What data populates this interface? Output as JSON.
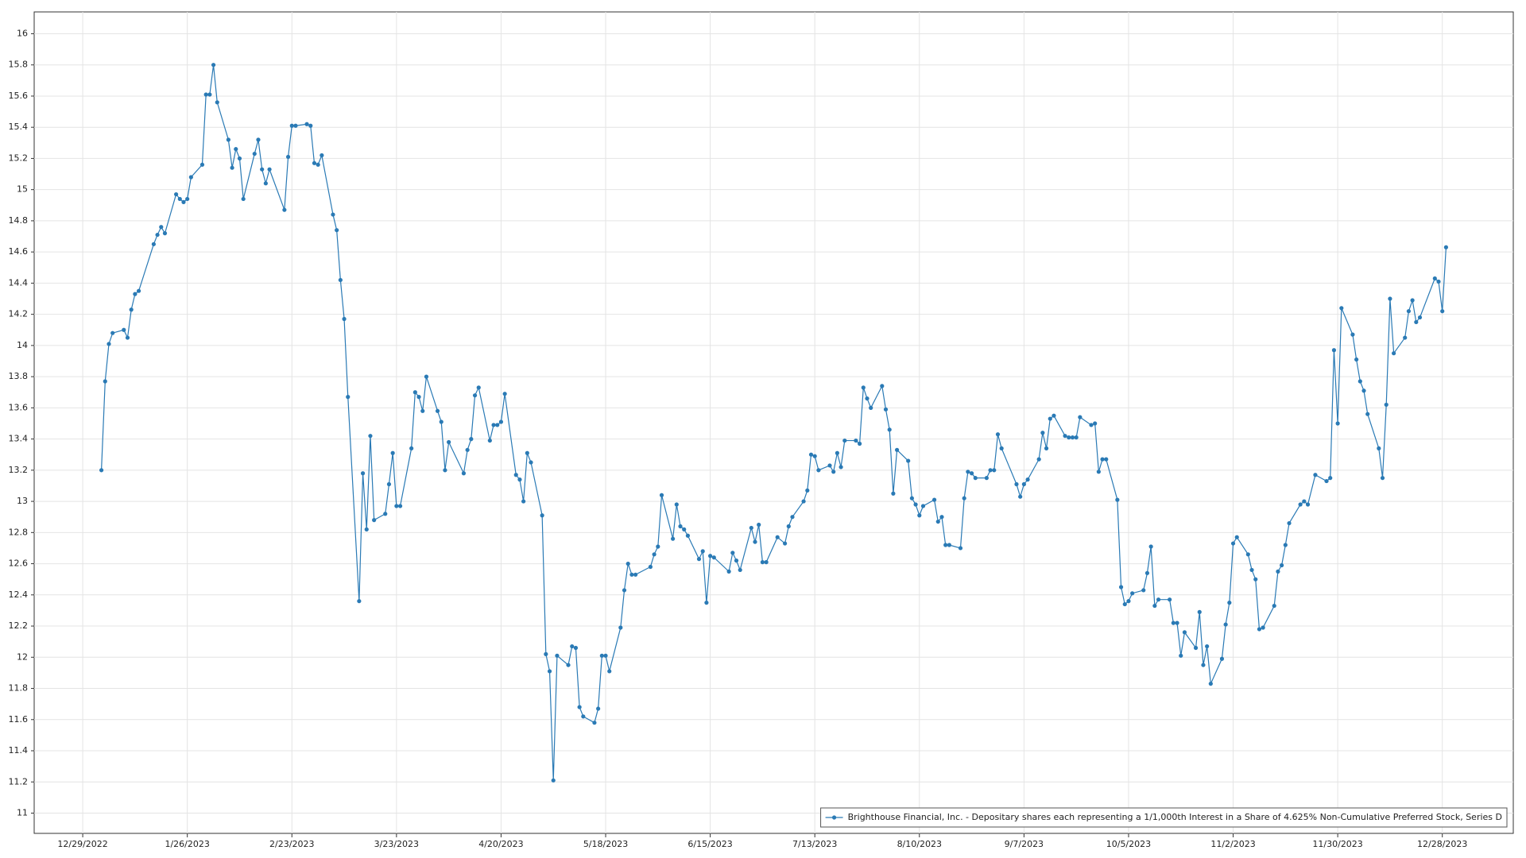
{
  "chart_data": {
    "type": "line",
    "x": [
      "1/3/2023",
      "1/4/2023",
      "1/5/2023",
      "1/6/2023",
      "1/9/2023",
      "1/10/2023",
      "1/11/2023",
      "1/12/2023",
      "1/13/2023",
      "1/17/2023",
      "1/18/2023",
      "1/19/2023",
      "1/20/2023",
      "1/23/2023",
      "1/24/2023",
      "1/25/2023",
      "1/26/2023",
      "1/27/2023",
      "1/30/2023",
      "1/31/2023",
      "2/1/2023",
      "2/2/2023",
      "2/3/2023",
      "2/6/2023",
      "2/7/2023",
      "2/8/2023",
      "2/9/2023",
      "2/10/2023",
      "2/13/2023",
      "2/14/2023",
      "2/15/2023",
      "2/16/2023",
      "2/17/2023",
      "2/21/2023",
      "2/22/2023",
      "2/23/2023",
      "2/24/2023",
      "2/27/2023",
      "2/28/2023",
      "3/1/2023",
      "3/2/2023",
      "3/3/2023",
      "3/6/2023",
      "3/7/2023",
      "3/8/2023",
      "3/9/2023",
      "3/10/2023",
      "3/13/2023",
      "3/14/2023",
      "3/15/2023",
      "3/16/2023",
      "3/17/2023",
      "3/20/2023",
      "3/21/2023",
      "3/22/2023",
      "3/23/2023",
      "3/24/2023",
      "3/27/2023",
      "3/28/2023",
      "3/29/2023",
      "3/30/2023",
      "3/31/2023",
      "4/3/2023",
      "4/4/2023",
      "4/5/2023",
      "4/6/2023",
      "4/10/2023",
      "4/11/2023",
      "4/12/2023",
      "4/13/2023",
      "4/14/2023",
      "4/17/2023",
      "4/18/2023",
      "4/19/2023",
      "4/20/2023",
      "4/21/2023",
      "4/24/2023",
      "4/25/2023",
      "4/26/2023",
      "4/27/2023",
      "4/28/2023",
      "5/1/2023",
      "5/2/2023",
      "5/3/2023",
      "5/4/2023",
      "5/5/2023",
      "5/8/2023",
      "5/9/2023",
      "5/10/2023",
      "5/11/2023",
      "5/12/2023",
      "5/15/2023",
      "5/16/2023",
      "5/17/2023",
      "5/18/2023",
      "5/19/2023",
      "5/22/2023",
      "5/23/2023",
      "5/24/2023",
      "5/25/2023",
      "5/26/2023",
      "5/30/2023",
      "5/31/2023",
      "6/1/2023",
      "6/2/2023",
      "6/5/2023",
      "6/6/2023",
      "6/7/2023",
      "6/8/2023",
      "6/9/2023",
      "6/12/2023",
      "6/13/2023",
      "6/14/2023",
      "6/15/2023",
      "6/16/2023",
      "6/20/2023",
      "6/21/2023",
      "6/22/2023",
      "6/23/2023",
      "6/26/2023",
      "6/27/2023",
      "6/28/2023",
      "6/29/2023",
      "6/30/2023",
      "7/3/2023",
      "7/5/2023",
      "7/6/2023",
      "7/7/2023",
      "7/10/2023",
      "7/11/2023",
      "7/12/2023",
      "7/13/2023",
      "7/14/2023",
      "7/17/2023",
      "7/18/2023",
      "7/19/2023",
      "7/20/2023",
      "7/21/2023",
      "7/24/2023",
      "7/25/2023",
      "7/26/2023",
      "7/27/2023",
      "7/28/2023",
      "7/31/2023",
      "8/1/2023",
      "8/2/2023",
      "8/3/2023",
      "8/4/2023",
      "8/7/2023",
      "8/8/2023",
      "8/9/2023",
      "8/10/2023",
      "8/11/2023",
      "8/14/2023",
      "8/15/2023",
      "8/16/2023",
      "8/17/2023",
      "8/18/2023",
      "8/21/2023",
      "8/22/2023",
      "8/23/2023",
      "8/24/2023",
      "8/25/2023",
      "8/28/2023",
      "8/29/2023",
      "8/30/2023",
      "8/31/2023",
      "9/1/2023",
      "9/5/2023",
      "9/6/2023",
      "9/7/2023",
      "9/8/2023",
      "9/11/2023",
      "9/12/2023",
      "9/13/2023",
      "9/14/2023",
      "9/15/2023",
      "9/18/2023",
      "9/19/2023",
      "9/20/2023",
      "9/21/2023",
      "9/22/2023",
      "9/25/2023",
      "9/26/2023",
      "9/27/2023",
      "9/28/2023",
      "9/29/2023",
      "10/2/2023",
      "10/3/2023",
      "10/4/2023",
      "10/5/2023",
      "10/6/2023",
      "10/9/2023",
      "10/10/2023",
      "10/11/2023",
      "10/12/2023",
      "10/13/2023",
      "10/16/2023",
      "10/17/2023",
      "10/18/2023",
      "10/19/2023",
      "10/20/2023",
      "10/23/2023",
      "10/24/2023",
      "10/25/2023",
      "10/26/2023",
      "10/27/2023",
      "10/30/2023",
      "10/31/2023",
      "11/1/2023",
      "11/2/2023",
      "11/3/2023",
      "11/6/2023",
      "11/7/2023",
      "11/8/2023",
      "11/9/2023",
      "11/10/2023",
      "11/13/2023",
      "11/14/2023",
      "11/15/2023",
      "11/16/2023",
      "11/17/2023",
      "11/20/2023",
      "11/21/2023",
      "11/22/2023",
      "11/24/2023",
      "11/27/2023",
      "11/28/2023",
      "11/29/2023",
      "11/30/2023",
      "12/1/2023",
      "12/4/2023",
      "12/5/2023",
      "12/6/2023",
      "12/7/2023",
      "12/8/2023",
      "12/11/2023",
      "12/12/2023",
      "12/13/2023",
      "12/14/2023",
      "12/15/2023",
      "12/18/2023",
      "12/19/2023",
      "12/20/2023",
      "12/21/2023",
      "12/22/2023",
      "12/26/2023",
      "12/27/2023",
      "12/28/2023",
      "12/29/2023"
    ],
    "series": [
      {
        "name": "Brighthouse Financial, Inc. - Depositary shares each representing a 1/1,000th Interest in a Share of 4.625% Non-Cumulative Preferred Stock, Series D",
        "color": "#2a7ab5",
        "values": [
          13.2,
          13.77,
          14.01,
          14.08,
          14.1,
          14.05,
          14.23,
          14.33,
          14.35,
          14.65,
          14.71,
          14.76,
          14.72,
          14.97,
          14.94,
          14.92,
          14.94,
          15.08,
          15.16,
          15.61,
          15.61,
          15.8,
          15.56,
          15.32,
          15.14,
          15.26,
          15.2,
          14.94,
          15.23,
          15.32,
          15.13,
          15.04,
          15.13,
          14.87,
          15.21,
          15.41,
          15.41,
          15.42,
          15.41,
          15.17,
          15.16,
          15.22,
          14.84,
          14.74,
          14.42,
          14.17,
          13.67,
          12.36,
          13.18,
          12.82,
          13.42,
          12.88,
          12.92,
          13.11,
          13.31,
          12.97,
          12.97,
          13.34,
          13.7,
          13.67,
          13.58,
          13.8,
          13.58,
          13.51,
          13.2,
          13.38,
          13.18,
          13.33,
          13.4,
          13.68,
          13.73,
          13.39,
          13.49,
          13.49,
          13.51,
          13.69,
          13.17,
          13.14,
          13.0,
          13.31,
          13.25,
          12.91,
          12.02,
          11.91,
          11.21,
          12.01,
          11.95,
          12.07,
          12.06,
          11.68,
          11.62,
          11.58,
          11.67,
          12.01,
          12.01,
          11.91,
          12.19,
          12.43,
          12.6,
          12.53,
          12.53,
          12.58,
          12.66,
          12.71,
          13.04,
          12.76,
          12.98,
          12.84,
          12.82,
          12.78,
          12.63,
          12.68,
          12.35,
          12.65,
          12.64,
          12.55,
          12.67,
          12.62,
          12.56,
          12.83,
          12.74,
          12.85,
          12.61,
          12.61,
          12.77,
          12.73,
          12.84,
          12.9,
          13.0,
          13.07,
          13.3,
          13.29,
          13.2,
          13.23,
          13.19,
          13.31,
          13.22,
          13.39,
          13.39,
          13.37,
          13.73,
          13.66,
          13.6,
          13.74,
          13.59,
          13.46,
          13.05,
          13.33,
          13.26,
          13.02,
          12.98,
          12.91,
          12.97,
          13.01,
          12.87,
          12.9,
          12.72,
          12.72,
          12.7,
          13.02,
          13.19,
          13.18,
          13.15,
          13.15,
          13.2,
          13.2,
          13.43,
          13.34,
          13.11,
          13.03,
          13.11,
          13.14,
          13.27,
          13.44,
          13.34,
          13.53,
          13.55,
          13.42,
          13.41,
          13.41,
          13.41,
          13.54,
          13.49,
          13.5,
          13.19,
          13.27,
          13.27,
          13.01,
          12.45,
          12.34,
          12.36,
          12.41,
          12.43,
          12.54,
          12.71,
          12.33,
          12.37,
          12.37,
          12.22,
          12.22,
          12.01,
          12.16,
          12.06,
          12.29,
          11.95,
          12.07,
          11.83,
          11.99,
          12.21,
          12.35,
          12.73,
          12.77,
          12.66,
          12.56,
          12.5,
          12.18,
          12.19,
          12.33,
          12.55,
          12.59,
          12.72,
          12.86,
          12.98,
          13.0,
          12.98,
          13.17,
          13.13,
          13.15,
          13.97,
          13.5,
          14.24,
          14.07,
          13.91,
          13.77,
          13.71,
          13.56,
          13.34,
          13.15,
          13.62,
          14.3,
          13.95,
          14.05,
          14.22,
          14.29,
          14.15,
          14.18,
          14.43,
          14.41,
          14.22,
          14.63
        ]
      }
    ],
    "xlim": [
      "12/16/2022",
      "1/16/2024"
    ],
    "xticks": [
      "12/29/2022",
      "1/26/2023",
      "2/23/2023",
      "3/23/2023",
      "4/20/2023",
      "5/18/2023",
      "6/15/2023",
      "7/13/2023",
      "8/10/2023",
      "9/7/2023",
      "10/5/2023",
      "11/2/2023",
      "11/30/2023",
      "12/28/2023"
    ],
    "ylim": [
      10.87,
      16.14
    ],
    "yticks": [
      11,
      11.2,
      11.4,
      11.6,
      11.8,
      12,
      12.2,
      12.4,
      12.6,
      12.8,
      13,
      13.2,
      13.4,
      13.6,
      13.8,
      14,
      14.2,
      14.4,
      14.6,
      14.8,
      15,
      15.2,
      15.4,
      15.6,
      15.8,
      16
    ],
    "grid": true,
    "legend": "lower right"
  }
}
